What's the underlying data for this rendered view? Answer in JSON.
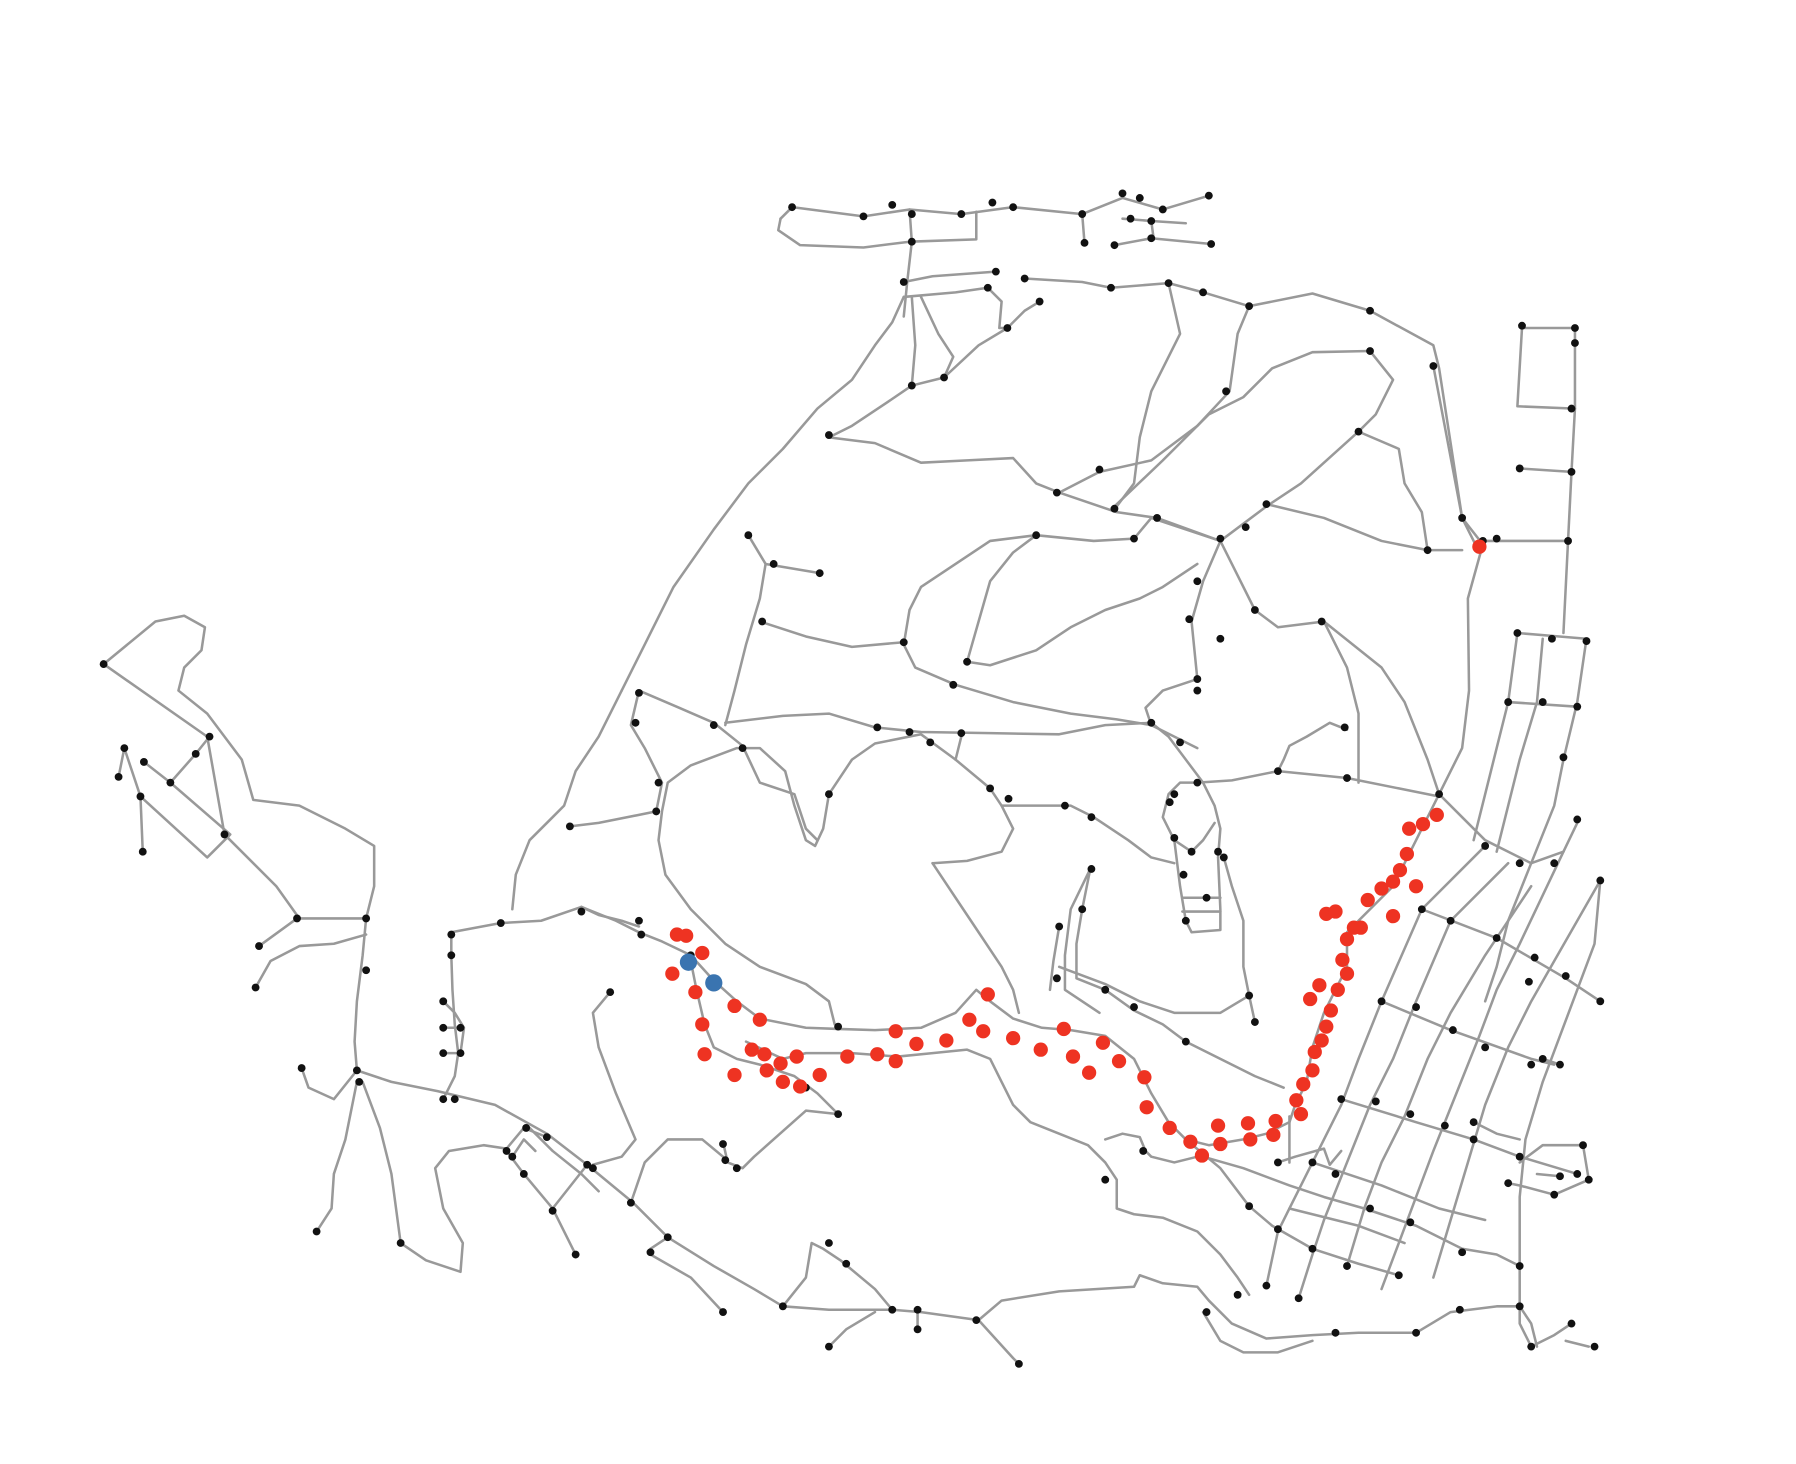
{
  "map": {
    "colors": {
      "background": "#ffffff",
      "road": "#999999",
      "node": "#111111",
      "trajectory_point": "#ee3322",
      "highlight_point": "#3a74b0"
    },
    "layers": [
      "road-network",
      "intersection-nodes",
      "trajectory-points",
      "highlighted-points"
    ]
  }
}
